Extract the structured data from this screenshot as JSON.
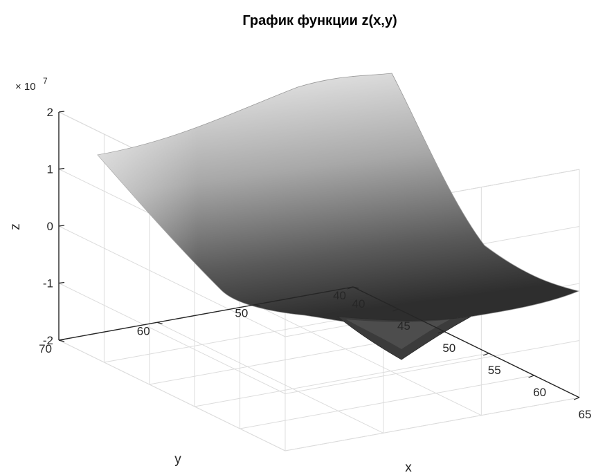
{
  "chart_data": {
    "type": "surface",
    "title": "График функции z(x,y)",
    "xlabel": "x",
    "ylabel": "y",
    "zlabel": "z",
    "xlim": [
      40,
      65
    ],
    "ylim": [
      40,
      70
    ],
    "zlim": [
      -2,
      2
    ],
    "z_multiplier": "× 10",
    "z_exponent": "7",
    "xticks": [
      "40",
      "45",
      "50",
      "55",
      "60",
      "65"
    ],
    "yticks": [
      "40",
      "50",
      "60",
      "70"
    ],
    "zticks": [
      "-2",
      "-1",
      "0",
      "1",
      "2"
    ],
    "grid": true,
    "colormap": "gray",
    "surface_corners": [
      {
        "x": 40,
        "y": 70,
        "z": 1.25
      },
      {
        "x": 65,
        "y": 70,
        "z": 2.3
      },
      {
        "x": 65,
        "y": 40,
        "z": -1.2
      },
      {
        "x": 40,
        "y": 40,
        "z": -1.6
      }
    ],
    "surface_min": {
      "x": 52,
      "y": 40,
      "z": -2.2
    }
  }
}
